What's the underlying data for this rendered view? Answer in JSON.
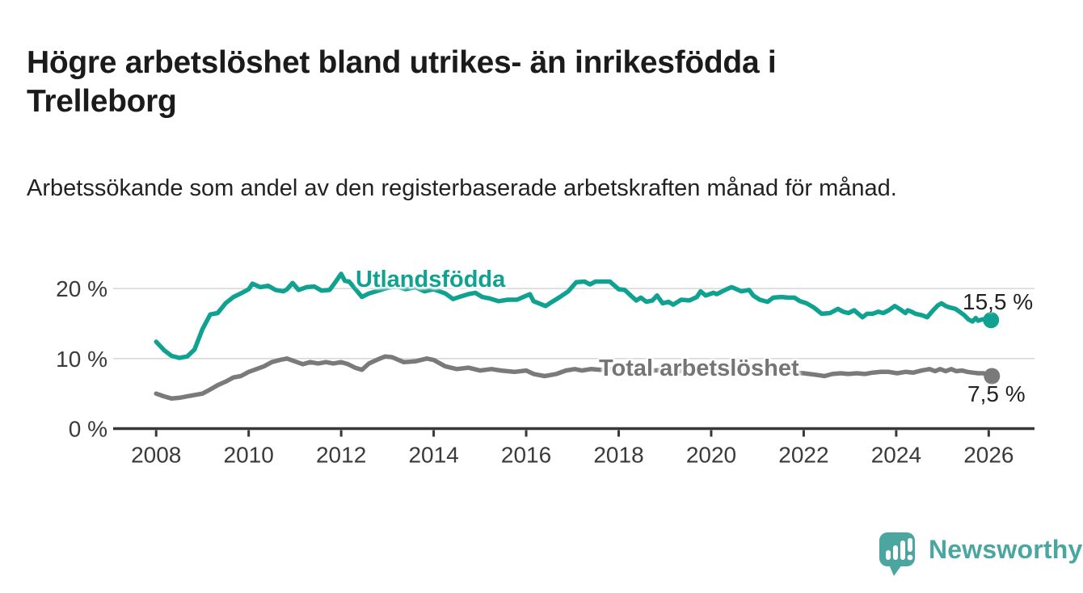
{
  "chart_data": {
    "type": "line",
    "title": "Högre arbetslöshet bland utrikes- än inrikesfödda i Trelleborg",
    "subtitle": "Arbetssökande som andel av den registerbaserade arbetskraften månad för månad.",
    "grid": true,
    "legend_position": "inline-labels-on-lines",
    "x_axis": {
      "range": [
        2007.07,
        2026.99
      ],
      "ticks": [
        2008,
        2010,
        2012,
        2014,
        2016,
        2018,
        2020,
        2022,
        2024,
        2026
      ]
    },
    "y_axis": {
      "range": [
        0,
        22.5
      ],
      "tick_values": [
        0,
        10,
        20
      ],
      "tick_labels": [
        "0 %",
        "10 %",
        "20 %"
      ]
    },
    "series": [
      {
        "name": "Utlandsfödda",
        "color": "#0FA291",
        "end_label": "15,5 %",
        "end_value": 15.5,
        "unit": "%",
        "points": [
          [
            2008.0,
            12.4
          ],
          [
            2008.17,
            11.2
          ],
          [
            2008.33,
            10.4
          ],
          [
            2008.5,
            10.1
          ],
          [
            2008.67,
            10.3
          ],
          [
            2008.83,
            11.3
          ],
          [
            2009.0,
            14.2
          ],
          [
            2009.17,
            16.3
          ],
          [
            2009.33,
            16.5
          ],
          [
            2009.5,
            17.9
          ],
          [
            2009.67,
            18.8
          ],
          [
            2009.83,
            19.3
          ],
          [
            2010.0,
            19.9
          ],
          [
            2010.08,
            20.7
          ],
          [
            2010.25,
            20.2
          ],
          [
            2010.42,
            20.4
          ],
          [
            2010.58,
            19.8
          ],
          [
            2010.75,
            19.6
          ],
          [
            2010.83,
            19.9
          ],
          [
            2010.95,
            20.8
          ],
          [
            2011.08,
            19.8
          ],
          [
            2011.25,
            20.2
          ],
          [
            2011.42,
            20.3
          ],
          [
            2011.58,
            19.7
          ],
          [
            2011.75,
            19.8
          ],
          [
            2011.85,
            20.7
          ],
          [
            2012.0,
            22.1
          ],
          [
            2012.08,
            21.1
          ],
          [
            2012.17,
            21.0
          ],
          [
            2012.25,
            20.4
          ],
          [
            2012.45,
            18.8
          ],
          [
            2012.6,
            19.3
          ],
          [
            2012.8,
            19.7
          ],
          [
            2013.0,
            20.1
          ],
          [
            2013.2,
            20.3
          ],
          [
            2013.4,
            19.9
          ],
          [
            2013.6,
            20.2
          ],
          [
            2013.8,
            19.6
          ],
          [
            2014.0,
            19.9
          ],
          [
            2014.25,
            19.3
          ],
          [
            2014.42,
            18.5
          ],
          [
            2014.6,
            18.9
          ],
          [
            2014.75,
            19.2
          ],
          [
            2014.9,
            19.4
          ],
          [
            2015.05,
            18.8
          ],
          [
            2015.2,
            18.6
          ],
          [
            2015.4,
            18.2
          ],
          [
            2015.6,
            18.4
          ],
          [
            2015.8,
            18.4
          ],
          [
            2016.08,
            19.2
          ],
          [
            2016.16,
            18.2
          ],
          [
            2016.42,
            17.5
          ],
          [
            2016.56,
            18.1
          ],
          [
            2016.73,
            18.8
          ],
          [
            2016.91,
            19.6
          ],
          [
            2017.08,
            20.9
          ],
          [
            2017.26,
            21.0
          ],
          [
            2017.38,
            20.6
          ],
          [
            2017.5,
            21.0
          ],
          [
            2017.68,
            21.0
          ],
          [
            2017.81,
            21.0
          ],
          [
            2018.0,
            19.9
          ],
          [
            2018.13,
            19.8
          ],
          [
            2018.26,
            19.0
          ],
          [
            2018.38,
            18.3
          ],
          [
            2018.48,
            18.7
          ],
          [
            2018.6,
            18.1
          ],
          [
            2018.73,
            18.3
          ],
          [
            2018.83,
            19.0
          ],
          [
            2018.95,
            17.9
          ],
          [
            2019.08,
            18.1
          ],
          [
            2019.18,
            17.7
          ],
          [
            2019.35,
            18.4
          ],
          [
            2019.53,
            18.3
          ],
          [
            2019.69,
            18.8
          ],
          [
            2019.77,
            19.6
          ],
          [
            2019.88,
            19.0
          ],
          [
            2020.05,
            19.4
          ],
          [
            2020.12,
            19.2
          ],
          [
            2020.3,
            19.8
          ],
          [
            2020.44,
            20.2
          ],
          [
            2020.52,
            20.0
          ],
          [
            2020.65,
            19.6
          ],
          [
            2020.82,
            19.8
          ],
          [
            2020.91,
            19.0
          ],
          [
            2021.05,
            18.4
          ],
          [
            2021.22,
            18.1
          ],
          [
            2021.34,
            18.7
          ],
          [
            2021.52,
            18.8
          ],
          [
            2021.66,
            18.7
          ],
          [
            2021.8,
            18.7
          ],
          [
            2021.92,
            18.2
          ],
          [
            2022.06,
            17.9
          ],
          [
            2022.22,
            17.3
          ],
          [
            2022.39,
            16.4
          ],
          [
            2022.57,
            16.5
          ],
          [
            2022.74,
            17.1
          ],
          [
            2022.85,
            16.7
          ],
          [
            2022.97,
            16.5
          ],
          [
            2023.09,
            16.9
          ],
          [
            2023.18,
            16.4
          ],
          [
            2023.27,
            15.9
          ],
          [
            2023.37,
            16.4
          ],
          [
            2023.49,
            16.4
          ],
          [
            2023.61,
            16.7
          ],
          [
            2023.72,
            16.5
          ],
          [
            2023.84,
            16.9
          ],
          [
            2023.97,
            17.5
          ],
          [
            2024.07,
            17.1
          ],
          [
            2024.2,
            16.5
          ],
          [
            2024.25,
            16.9
          ],
          [
            2024.33,
            16.7
          ],
          [
            2024.42,
            16.4
          ],
          [
            2024.55,
            16.2
          ],
          [
            2024.67,
            15.9
          ],
          [
            2024.77,
            16.7
          ],
          [
            2024.9,
            17.6
          ],
          [
            2024.98,
            17.9
          ],
          [
            2025.07,
            17.5
          ],
          [
            2025.16,
            17.3
          ],
          [
            2025.28,
            17.1
          ],
          [
            2025.37,
            16.7
          ],
          [
            2025.47,
            16.2
          ],
          [
            2025.56,
            15.6
          ],
          [
            2025.65,
            15.3
          ],
          [
            2025.72,
            15.8
          ],
          [
            2025.77,
            15.4
          ],
          [
            2025.86,
            15.6
          ],
          [
            2026.05,
            15.5
          ]
        ]
      },
      {
        "name": "Total arbetslöshet",
        "color": "#7A7A7A",
        "end_label": "7,5 %",
        "end_value": 7.5,
        "unit": "%",
        "points": [
          [
            2008.0,
            5.0
          ],
          [
            2008.17,
            4.6
          ],
          [
            2008.33,
            4.3
          ],
          [
            2008.5,
            4.4
          ],
          [
            2008.67,
            4.6
          ],
          [
            2008.83,
            4.8
          ],
          [
            2009.0,
            5.0
          ],
          [
            2009.17,
            5.6
          ],
          [
            2009.33,
            6.2
          ],
          [
            2009.5,
            6.7
          ],
          [
            2009.67,
            7.3
          ],
          [
            2009.83,
            7.5
          ],
          [
            2010.0,
            8.1
          ],
          [
            2010.17,
            8.5
          ],
          [
            2010.33,
            8.9
          ],
          [
            2010.5,
            9.5
          ],
          [
            2010.67,
            9.8
          ],
          [
            2010.83,
            10.0
          ],
          [
            2011.0,
            9.6
          ],
          [
            2011.17,
            9.2
          ],
          [
            2011.33,
            9.5
          ],
          [
            2011.5,
            9.3
          ],
          [
            2011.67,
            9.5
          ],
          [
            2011.83,
            9.3
          ],
          [
            2012.0,
            9.5
          ],
          [
            2012.15,
            9.2
          ],
          [
            2012.3,
            8.7
          ],
          [
            2012.45,
            8.4
          ],
          [
            2012.6,
            9.3
          ],
          [
            2012.8,
            9.9
          ],
          [
            2012.95,
            10.3
          ],
          [
            2013.1,
            10.2
          ],
          [
            2013.35,
            9.5
          ],
          [
            2013.6,
            9.6
          ],
          [
            2013.85,
            10.0
          ],
          [
            2014.0,
            9.8
          ],
          [
            2014.25,
            8.9
          ],
          [
            2014.5,
            8.5
          ],
          [
            2014.75,
            8.7
          ],
          [
            2015.0,
            8.3
          ],
          [
            2015.25,
            8.5
          ],
          [
            2015.45,
            8.3
          ],
          [
            2015.75,
            8.1
          ],
          [
            2016.0,
            8.3
          ],
          [
            2016.16,
            7.8
          ],
          [
            2016.4,
            7.5
          ],
          [
            2016.65,
            7.8
          ],
          [
            2016.86,
            8.3
          ],
          [
            2017.05,
            8.5
          ],
          [
            2017.2,
            8.3
          ],
          [
            2017.4,
            8.5
          ],
          [
            2017.6,
            8.4
          ],
          [
            2017.8,
            8.5
          ],
          [
            2018.0,
            8.6
          ],
          [
            2018.25,
            8.4
          ],
          [
            2018.5,
            8.5
          ],
          [
            2018.75,
            8.3
          ],
          [
            2019.0,
            8.4
          ],
          [
            2019.25,
            8.2
          ],
          [
            2019.5,
            8.3
          ],
          [
            2019.75,
            8.1
          ],
          [
            2020.0,
            8.2
          ],
          [
            2020.25,
            8.4
          ],
          [
            2020.5,
            8.6
          ],
          [
            2020.75,
            8.5
          ],
          [
            2021.0,
            8.4
          ],
          [
            2021.25,
            8.3
          ],
          [
            2021.5,
            8.2
          ],
          [
            2021.75,
            8.0
          ],
          [
            2022.0,
            7.9
          ],
          [
            2022.25,
            7.7
          ],
          [
            2022.45,
            7.5
          ],
          [
            2022.62,
            7.8
          ],
          [
            2022.8,
            7.9
          ],
          [
            2022.97,
            7.8
          ],
          [
            2023.15,
            7.9
          ],
          [
            2023.32,
            7.8
          ],
          [
            2023.49,
            8.0
          ],
          [
            2023.67,
            8.1
          ],
          [
            2023.84,
            8.1
          ],
          [
            2024.02,
            7.9
          ],
          [
            2024.2,
            8.1
          ],
          [
            2024.37,
            8.0
          ],
          [
            2024.55,
            8.3
          ],
          [
            2024.72,
            8.5
          ],
          [
            2024.84,
            8.2
          ],
          [
            2024.95,
            8.5
          ],
          [
            2025.07,
            8.2
          ],
          [
            2025.19,
            8.5
          ],
          [
            2025.3,
            8.2
          ],
          [
            2025.42,
            8.3
          ],
          [
            2025.54,
            8.1
          ],
          [
            2025.65,
            8.0
          ],
          [
            2025.77,
            7.9
          ],
          [
            2025.89,
            7.9
          ],
          [
            2026.07,
            7.5
          ]
        ]
      }
    ]
  },
  "branding": {
    "logo_text": "Newsworthy",
    "logo_color": "#4BA6A0"
  },
  "colors": {
    "accent_teal": "#0FA291",
    "series_gray": "#7A7A7A",
    "gridline": "#D9D9D9",
    "axis": "#383838",
    "tick_text": "#3A3A3A"
  }
}
